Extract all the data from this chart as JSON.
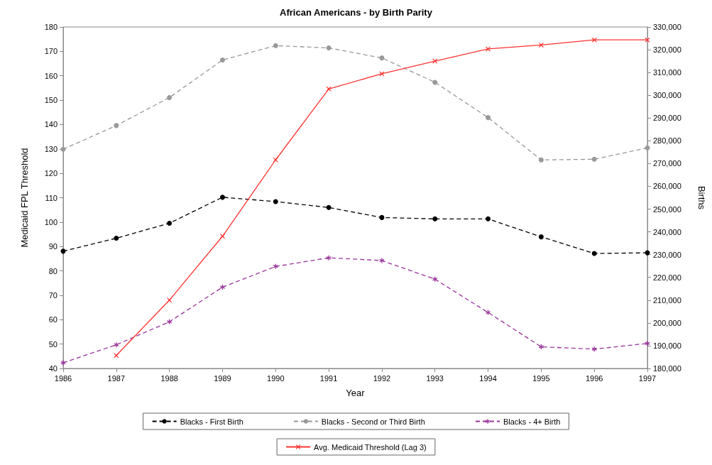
{
  "chart_data": {
    "type": "line",
    "title": "African Americans - by Birth Parity",
    "xlabel": "Year",
    "ylabel": "Medicaid FPL Threshold",
    "y2label": "Births",
    "x": [
      1986,
      1987,
      1988,
      1989,
      1990,
      1991,
      1992,
      1993,
      1994,
      1995,
      1996,
      1997
    ],
    "xlim": [
      1986,
      1997
    ],
    "xticks": [
      1986,
      1987,
      1988,
      1989,
      1990,
      1991,
      1992,
      1993,
      1994,
      1995,
      1996,
      1997
    ],
    "ylim": [
      40,
      180
    ],
    "yticks": [
      40,
      50,
      60,
      70,
      80,
      90,
      100,
      110,
      120,
      130,
      140,
      150,
      160,
      170,
      180
    ],
    "y2lim": [
      180000,
      330000
    ],
    "y2ticks": [
      {
        "value": 180000,
        "label": "180,000"
      },
      {
        "value": 190000,
        "label": "190,000"
      },
      {
        "value": 200000,
        "label": "200,000"
      },
      {
        "value": 210000,
        "label": "210,000"
      },
      {
        "value": 220000,
        "label": "220,000"
      },
      {
        "value": 230000,
        "label": "230,000"
      },
      {
        "value": 240000,
        "label": "240,000"
      },
      {
        "value": 250000,
        "label": "250,000"
      },
      {
        "value": 260000,
        "label": "260,000"
      },
      {
        "value": 270000,
        "label": "270,000"
      },
      {
        "value": 280000,
        "label": "280,000"
      },
      {
        "value": 290000,
        "label": "290,000"
      },
      {
        "value": 300000,
        "label": "300,000"
      },
      {
        "value": 310000,
        "label": "310,000"
      },
      {
        "value": 320000,
        "label": "320,000"
      },
      {
        "value": 330000,
        "label": "330,000"
      }
    ],
    "grid": false,
    "legend": "bottom",
    "series": [
      {
        "name": "Blacks - First Birth",
        "color": "#000000",
        "axis": "y2",
        "marker": "circle",
        "line_style": "dashed",
        "values": [
          231500,
          237200,
          243800,
          255200,
          253300,
          250700,
          246300,
          245700,
          245700,
          237800,
          230500,
          230800
        ]
      },
      {
        "name": "Blacks - Second or Third Birth",
        "color": "#999999",
        "axis": "y2",
        "marker": "circle",
        "line_style": "dashed",
        "values": [
          276300,
          286700,
          299000,
          315500,
          321800,
          320800,
          316400,
          305700,
          290200,
          271600,
          271900,
          276900
        ]
      },
      {
        "name": "Blacks - 4+ Birth",
        "color": "#993399",
        "axis": "y2",
        "marker": "star",
        "line_style": "dashed",
        "values": [
          182500,
          190400,
          200500,
          215700,
          224800,
          228600,
          227400,
          219200,
          204600,
          189500,
          188500,
          191000
        ]
      },
      {
        "name": "Avg. Medicaid Threshold (Lag 3)",
        "color": "#ff3333",
        "axis": "y",
        "marker": "cross",
        "line_style": "solid",
        "values": [
          null,
          45.3,
          68,
          94.2,
          125.5,
          154.6,
          160.8,
          166,
          171,
          172.6,
          174.7,
          174.7
        ]
      }
    ]
  }
}
